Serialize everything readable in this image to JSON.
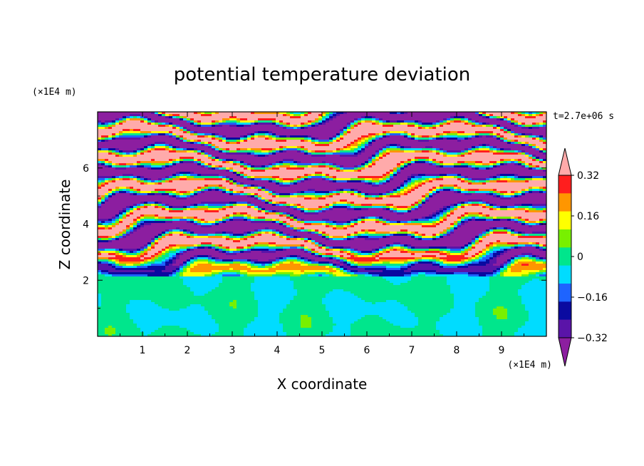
{
  "chart_data": {
    "type": "heatmap",
    "title": "potential temperature deviation",
    "xlabel": "X coordinate",
    "ylabel": "Z coordinate",
    "x_unit_label": "(×1E4 m)",
    "y_unit_label": "(×1E4 m)",
    "time_label": "t=2.7e+06 s",
    "xlim": [
      0,
      10
    ],
    "ylim": [
      0,
      8
    ],
    "x_ticks": [
      "1",
      "2",
      "3",
      "4",
      "5",
      "6",
      "7",
      "8",
      "9"
    ],
    "y_ticks": [
      "2",
      "4",
      "6"
    ],
    "colorbar": {
      "tick_labels": [
        "0.32",
        "0.16",
        "0",
        "−0.16",
        "−0.32"
      ],
      "tick_values": [
        0.32,
        0.16,
        0,
        -0.16,
        -0.32
      ],
      "levels": [
        -0.4,
        -0.32,
        -0.24,
        -0.16,
        -0.08,
        0,
        0.08,
        0.16,
        0.24,
        0.32,
        0.4
      ],
      "colors": [
        "#8c1ea0",
        "#5a14a8",
        "#0a0aa0",
        "#1e64ff",
        "#00dcff",
        "#00e68c",
        "#78f000",
        "#ffff00",
        "#ff9600",
        "#ff1e1e",
        "#ffaaaa"
      ],
      "extend": "both"
    },
    "description_of_field": {
      "lower_layer_z_range": [
        0,
        2.1
      ],
      "lower_layer_values_near": [
        -0.08,
        0.08
      ],
      "upper_layer_bands_alternating_between": [
        -0.4,
        0.4
      ]
    }
  }
}
